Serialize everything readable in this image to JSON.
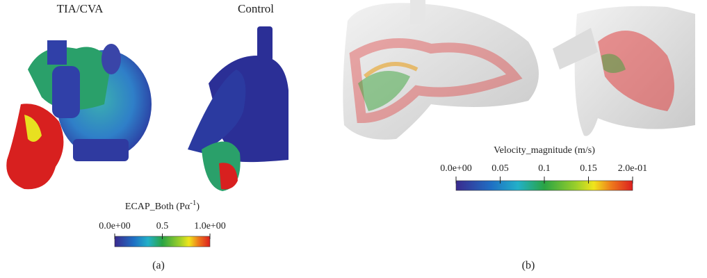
{
  "panels": [
    {
      "caption": "(a)",
      "labels": [
        "TIA/CVA",
        "Control"
      ],
      "colorbar": {
        "title": "ECAP_Both (Pα",
        "title_superscript": "-1",
        "title_end": ")",
        "lim": [
          0,
          1
        ],
        "ticks": [
          {
            "value": 0,
            "label": "0.0e+00"
          },
          0.5,
          {
            "value": 1,
            "label": "1.0e+00"
          }
        ]
      }
    },
    {
      "caption": "(b)",
      "colorbar": {
        "title": "Velocity_magnitude (m/s)",
        "lim": [
          0,
          0.2
        ],
        "ticks": [
          {
            "value": 0,
            "label": "0.0e+00"
          },
          0.05,
          0.1,
          0.15,
          {
            "value": 0.2,
            "label": "2.0e-01"
          }
        ]
      }
    }
  ]
}
